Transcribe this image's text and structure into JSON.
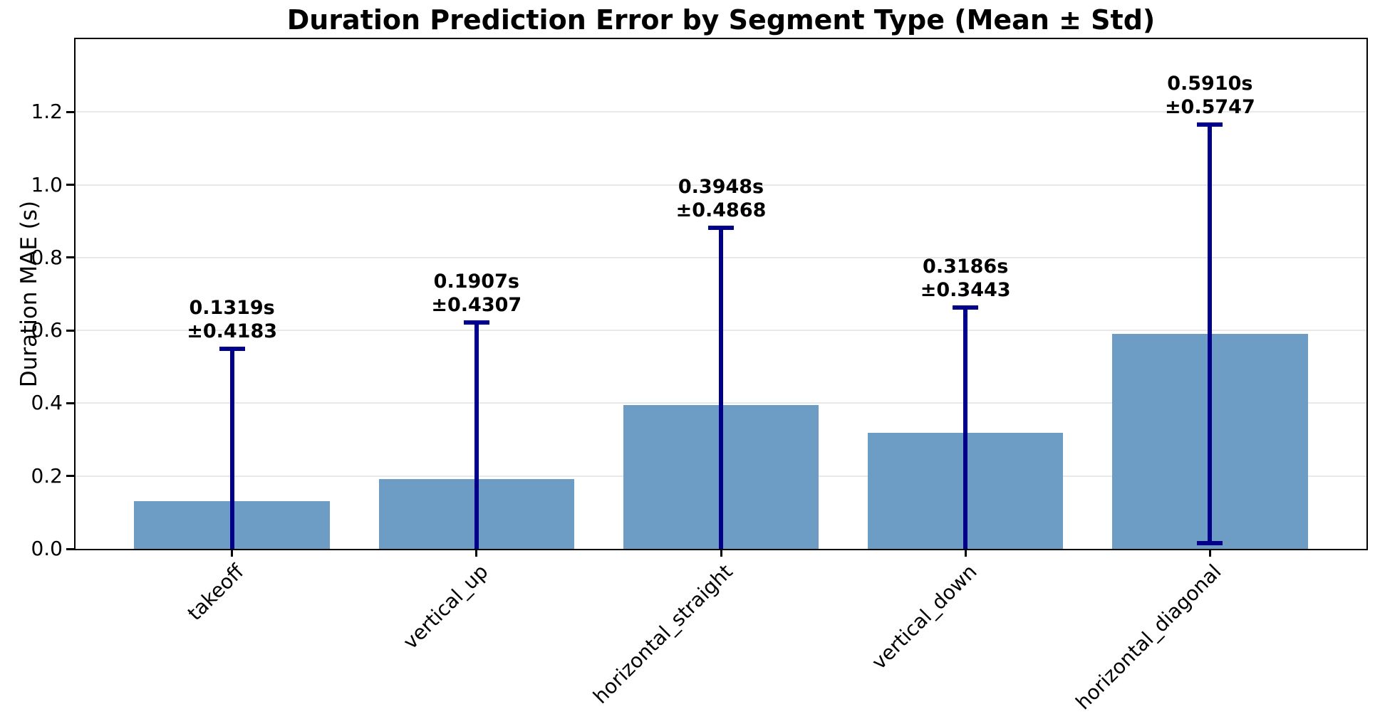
{
  "title": "Duration Prediction Error by Segment Type (Mean ± Std)",
  "chart_data": {
    "type": "bar",
    "title": "Duration Prediction Error by Segment Type (Mean ± Std)",
    "ylabel": "Duration MAE (s)",
    "xlabel": "",
    "categories": [
      "takeoff",
      "vertical_up",
      "horizontal_straight",
      "vertical_down",
      "horizontal_diagonal"
    ],
    "values": [
      0.1319,
      0.1907,
      0.3948,
      0.3186,
      0.591
    ],
    "errors": [
      0.4183,
      0.4307,
      0.4868,
      0.3443,
      0.5747
    ],
    "annotations": [
      {
        "mean": "0.1319s",
        "std": "±0.4183"
      },
      {
        "mean": "0.1907s",
        "std": "±0.4307"
      },
      {
        "mean": "0.3948s",
        "std": "±0.4868"
      },
      {
        "mean": "0.3186s",
        "std": "±0.3443"
      },
      {
        "mean": "0.5910s",
        "std": "±0.5747"
      }
    ],
    "ylim": [
      0,
      1.4
    ],
    "yticks": [
      0.0,
      0.2,
      0.4,
      0.6,
      0.8,
      1.0,
      1.2
    ],
    "ytick_labels": [
      "0.0",
      "0.2",
      "0.4",
      "0.6",
      "0.8",
      "1.0",
      "1.2"
    ],
    "grid": "horizontal",
    "legend_position": "none"
  },
  "colors": {
    "bar": "#6d9dc5",
    "error_bar": "#00008b",
    "grid": "#e8e8e8",
    "spine": "#000000",
    "text": "#000000",
    "background": "#ffffff"
  }
}
